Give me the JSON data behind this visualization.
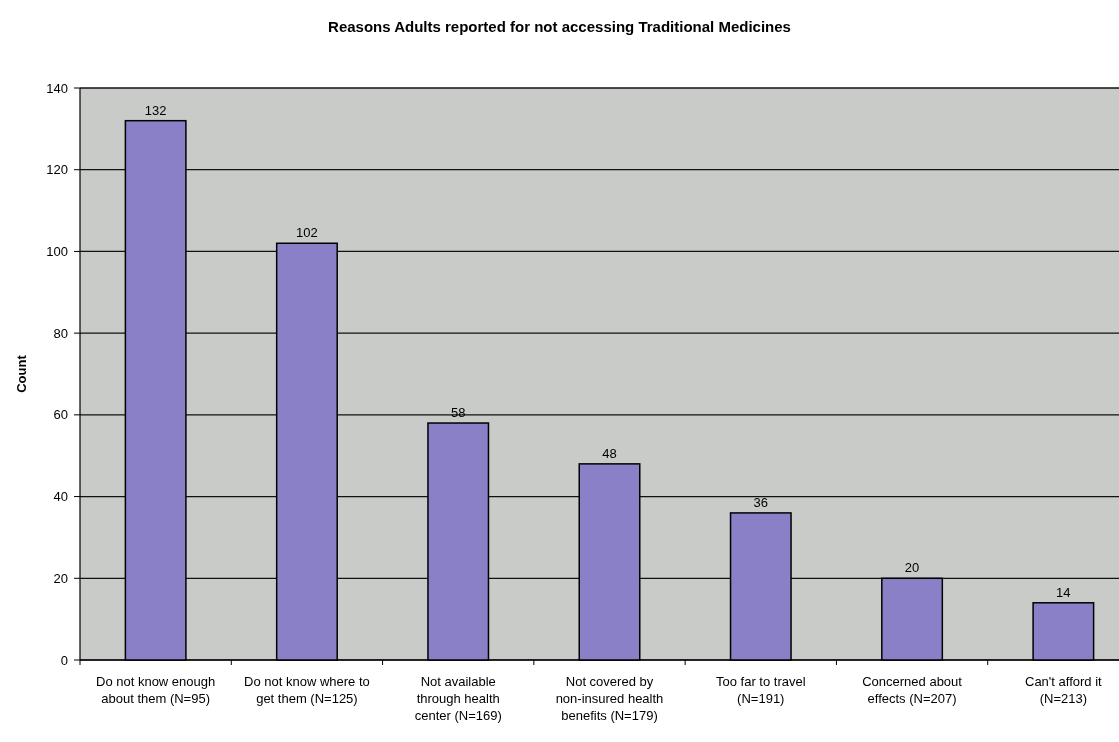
{
  "chart_data": {
    "type": "bar",
    "title": "Reasons Adults reported for not accessing Traditional Medicines",
    "ylabel": "Count",
    "categories": [
      "Do not know enough about them (N=95)",
      "Do not know where to get them (N=125)",
      "Not available through health center (N=169)",
      "Not covered by non-insured health benefits (N=179)",
      "Too far to travel (N=191)",
      "Concerned about effects (N=207)",
      "Can't afford it (N=213)"
    ],
    "values": [
      132,
      102,
      58,
      48,
      36,
      20,
      14
    ],
    "color": "#8a80c8",
    "ylim": [
      0,
      140
    ],
    "yticks": [
      0,
      20,
      40,
      60,
      80,
      100,
      120,
      140
    ],
    "grid": "y",
    "data_labels": true
  }
}
